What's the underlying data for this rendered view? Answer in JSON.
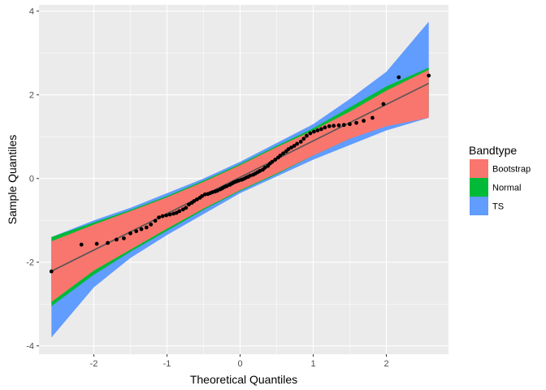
{
  "chart_data": {
    "type": "scatter",
    "title": "",
    "xlabel": "Theoretical Quantiles",
    "ylabel": "Sample Quantiles",
    "xlim": [
      -2.75,
      2.85
    ],
    "ylim": [
      -4.2,
      4.15
    ],
    "x_ticks": [
      -2,
      -1,
      0,
      1,
      2
    ],
    "y_ticks": [
      -4,
      -2,
      0,
      2,
      4
    ],
    "grid": true,
    "legend": {
      "title": "Bandtype",
      "position": "right",
      "entries": [
        {
          "label": "Bootstrap",
          "color": "#f8766d"
        },
        {
          "label": "Normal",
          "color": "#00ba38"
        },
        {
          "label": "TS",
          "color": "#619cff"
        }
      ]
    },
    "reference_line": {
      "intercept": 0.03,
      "slope": 0.87,
      "color": "#555555"
    },
    "bands": [
      {
        "name": "TS",
        "color": "#619cff",
        "x": [
          -2.58,
          -2.0,
          -1.5,
          -1.0,
          -0.5,
          0.0,
          0.5,
          1.0,
          1.5,
          2.0,
          2.58
        ],
        "lower": [
          -3.8,
          -2.6,
          -1.9,
          -1.35,
          -0.85,
          -0.35,
          0.05,
          0.45,
          0.8,
          1.15,
          1.45
        ],
        "upper": [
          -1.4,
          -1.0,
          -0.7,
          -0.35,
          -0.0,
          0.4,
          0.85,
          1.3,
          1.9,
          2.55,
          3.75
        ]
      },
      {
        "name": "Normal",
        "color": "#00ba38",
        "x": [
          -2.58,
          -2.0,
          -1.5,
          -1.0,
          -0.5,
          0.0,
          0.5,
          1.0,
          1.5,
          2.0,
          2.58
        ],
        "lower": [
          -3.05,
          -2.3,
          -1.75,
          -1.25,
          -0.75,
          -0.3,
          0.1,
          0.55,
          0.95,
          1.3,
          1.6
        ],
        "upper": [
          -1.4,
          -1.05,
          -0.75,
          -0.42,
          -0.05,
          0.35,
          0.78,
          1.2,
          1.7,
          2.2,
          2.65
        ]
      },
      {
        "name": "Bootstrap",
        "color": "#f8766d",
        "x": [
          -2.58,
          -2.0,
          -1.5,
          -1.0,
          -0.5,
          0.0,
          0.5,
          1.0,
          1.5,
          2.0,
          2.58
        ],
        "lower": [
          -2.95,
          -2.2,
          -1.7,
          -1.2,
          -0.72,
          -0.28,
          0.12,
          0.55,
          0.95,
          1.25,
          1.45
        ],
        "upper": [
          -1.5,
          -1.1,
          -0.78,
          -0.45,
          -0.08,
          0.32,
          0.75,
          1.15,
          1.6,
          2.1,
          2.6
        ]
      }
    ],
    "points": {
      "x": [
        -2.58,
        -2.17,
        -1.96,
        -1.81,
        -1.69,
        -1.59,
        -1.5,
        -1.42,
        -1.35,
        -1.28,
        -1.22,
        -1.16,
        -1.11,
        -1.06,
        -1.01,
        -0.96,
        -0.91,
        -0.87,
        -0.83,
        -0.78,
        -0.74,
        -0.7,
        -0.66,
        -0.63,
        -0.59,
        -0.55,
        -0.52,
        -0.48,
        -0.44,
        -0.41,
        -0.38,
        -0.34,
        -0.31,
        -0.27,
        -0.24,
        -0.21,
        -0.18,
        -0.14,
        -0.11,
        -0.08,
        -0.05,
        -0.02,
        0.02,
        0.05,
        0.08,
        0.11,
        0.14,
        0.18,
        0.21,
        0.24,
        0.27,
        0.31,
        0.34,
        0.38,
        0.41,
        0.44,
        0.48,
        0.52,
        0.55,
        0.59,
        0.63,
        0.66,
        0.7,
        0.74,
        0.78,
        0.83,
        0.87,
        0.91,
        0.96,
        1.01,
        1.06,
        1.11,
        1.16,
        1.22,
        1.28,
        1.35,
        1.42,
        1.5,
        1.59,
        1.69,
        1.81,
        1.96,
        2.17,
        2.58
      ],
      "y": [
        -2.22,
        -1.58,
        -1.56,
        -1.54,
        -1.46,
        -1.43,
        -1.31,
        -1.26,
        -1.21,
        -1.17,
        -1.1,
        -1.01,
        -0.93,
        -0.9,
        -0.88,
        -0.86,
        -0.84,
        -0.82,
        -0.78,
        -0.74,
        -0.7,
        -0.62,
        -0.58,
        -0.54,
        -0.5,
        -0.46,
        -0.42,
        -0.38,
        -0.37,
        -0.35,
        -0.33,
        -0.31,
        -0.29,
        -0.26,
        -0.23,
        -0.2,
        -0.18,
        -0.15,
        -0.12,
        -0.09,
        -0.07,
        -0.05,
        -0.03,
        -0.01,
        0.02,
        0.04,
        0.07,
        0.09,
        0.12,
        0.15,
        0.18,
        0.21,
        0.26,
        0.3,
        0.36,
        0.4,
        0.45,
        0.5,
        0.55,
        0.6,
        0.65,
        0.7,
        0.74,
        0.78,
        0.83,
        0.88,
        0.95,
        1.02,
        1.08,
        1.12,
        1.15,
        1.18,
        1.22,
        1.25,
        1.26,
        1.27,
        1.28,
        1.3,
        1.33,
        1.38,
        1.45,
        1.78,
        2.42,
        2.46
      ]
    }
  }
}
